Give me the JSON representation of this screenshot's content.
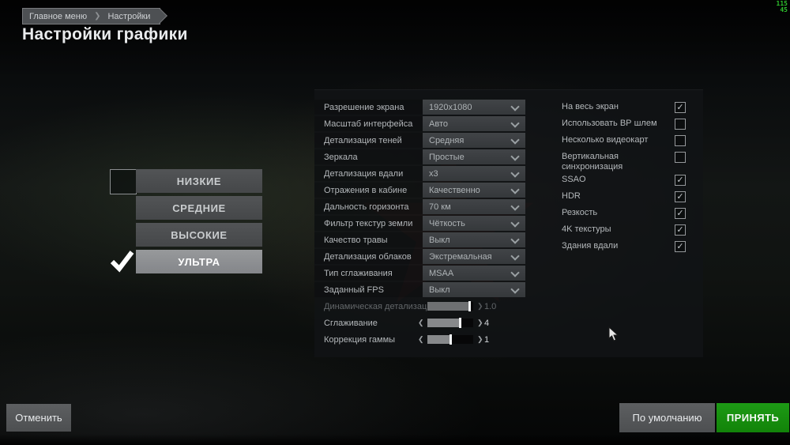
{
  "fps_overlay": {
    "line1": "115",
    "line2": "45",
    "color": "#2ec22e"
  },
  "breadcrumb": {
    "items": [
      {
        "label": "Главное меню"
      },
      {
        "label": "Настройки"
      }
    ]
  },
  "page_title": "Настройки графики",
  "presets": {
    "items": [
      {
        "label": "НИЗКИЕ",
        "selected": false
      },
      {
        "label": "СРЕДНИЕ",
        "selected": false
      },
      {
        "label": "ВЫСОКИЕ",
        "selected": false
      },
      {
        "label": "УЛЬТРА",
        "selected": true
      }
    ]
  },
  "settings": {
    "dropdowns": [
      {
        "label": "Разрешение экрана",
        "value": "1920x1080"
      },
      {
        "label": "Масштаб интерфейса",
        "value": "Авто"
      },
      {
        "label": "Детализация теней",
        "value": "Средняя"
      },
      {
        "label": "Зеркала",
        "value": "Простые"
      },
      {
        "label": "Детализация вдали",
        "value": "x3"
      },
      {
        "label": "Отражения в кабине",
        "value": "Качественно"
      },
      {
        "label": "Дальность горизонта",
        "value": "70 км"
      },
      {
        "label": "Фильтр текстур земли",
        "value": "Чёткость"
      },
      {
        "label": "Качество травы",
        "value": "Выкл"
      },
      {
        "label": "Детализация облаков",
        "value": "Экстремальная"
      },
      {
        "label": "Тип сглаживания",
        "value": "MSAA"
      },
      {
        "label": "Заданный FPS",
        "value": "Выкл"
      }
    ],
    "sliders": [
      {
        "label": "Динамическая детализация",
        "value": "1.0",
        "fill": 0.93,
        "disabled": true,
        "left_arrow": false
      },
      {
        "label": "Сглаживание",
        "value": "4",
        "fill": 0.72,
        "disabled": false,
        "left_arrow": true
      },
      {
        "label": "Коррекция гаммы",
        "value": "1",
        "fill": 0.52,
        "disabled": false,
        "left_arrow": true
      }
    ],
    "checkboxes": [
      {
        "label": "На весь экран",
        "checked": true
      },
      {
        "label": "Использовать ВР шлем",
        "checked": false
      },
      {
        "label": "Несколько видеокарт",
        "checked": false
      },
      {
        "label": "Вертикальная синхронизация",
        "checked": false
      },
      {
        "label": "SSAO",
        "checked": true
      },
      {
        "label": "HDR",
        "checked": true
      },
      {
        "label": "Резкость",
        "checked": true
      },
      {
        "label": "4K текстуры",
        "checked": true
      },
      {
        "label": "Здания вдали",
        "checked": true
      }
    ],
    "check_glyph": "✓"
  },
  "footer": {
    "cancel_label": "Отменить",
    "defaults_label": "По умолчанию",
    "accept_label": "ПРИНЯТЬ",
    "accept_color": "#168c10"
  }
}
